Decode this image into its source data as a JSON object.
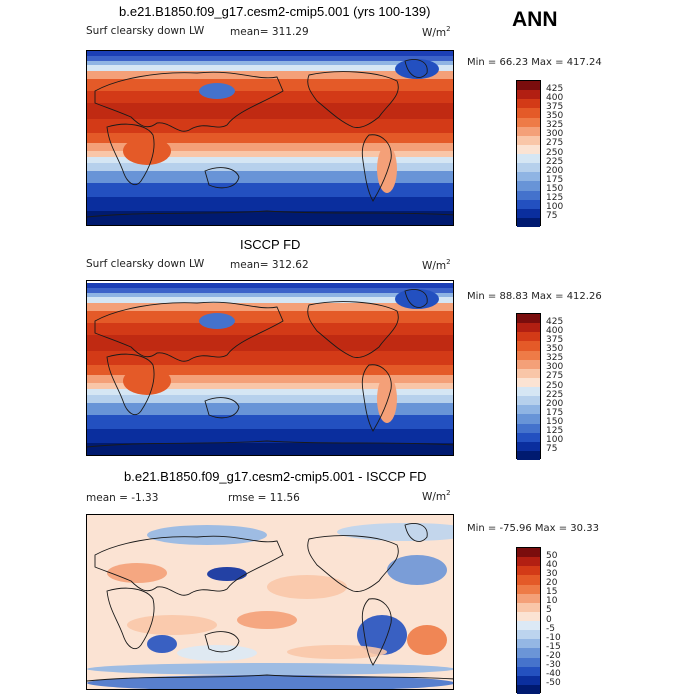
{
  "season": "ANN",
  "panels": [
    {
      "title": "b.e21.B1850.f09_g17.cesm2-cmip5.001 (yrs 100-139)",
      "variable": "Surf clearsky down LW",
      "stat": "mean= 311.29",
      "units": "W/m",
      "units_sup": "2",
      "minmax": "Min =  66.23 Max = 417.24",
      "field_kind": "absolute",
      "colorbar_levels": [
        "425",
        "400",
        "375",
        "350",
        "325",
        "300",
        "275",
        "250",
        "225",
        "200",
        "175",
        "150",
        "125",
        "100",
        "75"
      ],
      "colorbar_colors": [
        "#7a0d0d",
        "#b21f12",
        "#d33a17",
        "#e45a28",
        "#ee7b47",
        "#f4a078",
        "#f9c6a8",
        "#fbe3d3",
        "#d5e6f4",
        "#b6d0ec",
        "#8fb4e3",
        "#6894d7",
        "#4472cc",
        "#2350c0",
        "#0a2e9e",
        "#001a70"
      ]
    },
    {
      "title": "ISCCP FD",
      "variable": "Surf clearsky down LW",
      "stat": "mean= 312.62",
      "units": "W/m",
      "units_sup": "2",
      "minmax": "Min =  88.83 Max = 412.26",
      "field_kind": "absolute",
      "colorbar_levels": [
        "425",
        "400",
        "375",
        "350",
        "325",
        "300",
        "275",
        "250",
        "225",
        "200",
        "175",
        "150",
        "125",
        "100",
        "75"
      ],
      "colorbar_colors": [
        "#7a0d0d",
        "#b21f12",
        "#d33a17",
        "#e45a28",
        "#ee7b47",
        "#f4a078",
        "#f9c6a8",
        "#fbe3d3",
        "#d5e6f4",
        "#b6d0ec",
        "#8fb4e3",
        "#6894d7",
        "#4472cc",
        "#2350c0",
        "#0a2e9e",
        "#001a70"
      ]
    },
    {
      "title": "b.e21.B1850.f09_g17.cesm2-cmip5.001 - ISCCP FD",
      "variable": "",
      "stat": "mean =  -1.33",
      "stat2": "rmse =  11.56",
      "units": "W/m",
      "units_sup": "2",
      "minmax": "Min = -75.96 Max =  30.33",
      "field_kind": "difference",
      "colorbar_levels": [
        "50",
        "40",
        "30",
        "20",
        "15",
        "10",
        "5",
        "0",
        "-5",
        "-10",
        "-15",
        "-20",
        "-30",
        "-40",
        "-50"
      ],
      "colorbar_colors": [
        "#7a0d0d",
        "#b21f12",
        "#d33a17",
        "#e45a28",
        "#ee7b47",
        "#f4a078",
        "#f9c6a8",
        "#fbe3d3",
        "#dce9f5",
        "#bcd4ee",
        "#94b7e4",
        "#6b95d7",
        "#4673cc",
        "#2451c0",
        "#0b2f9e",
        "#001a70"
      ]
    }
  ]
}
